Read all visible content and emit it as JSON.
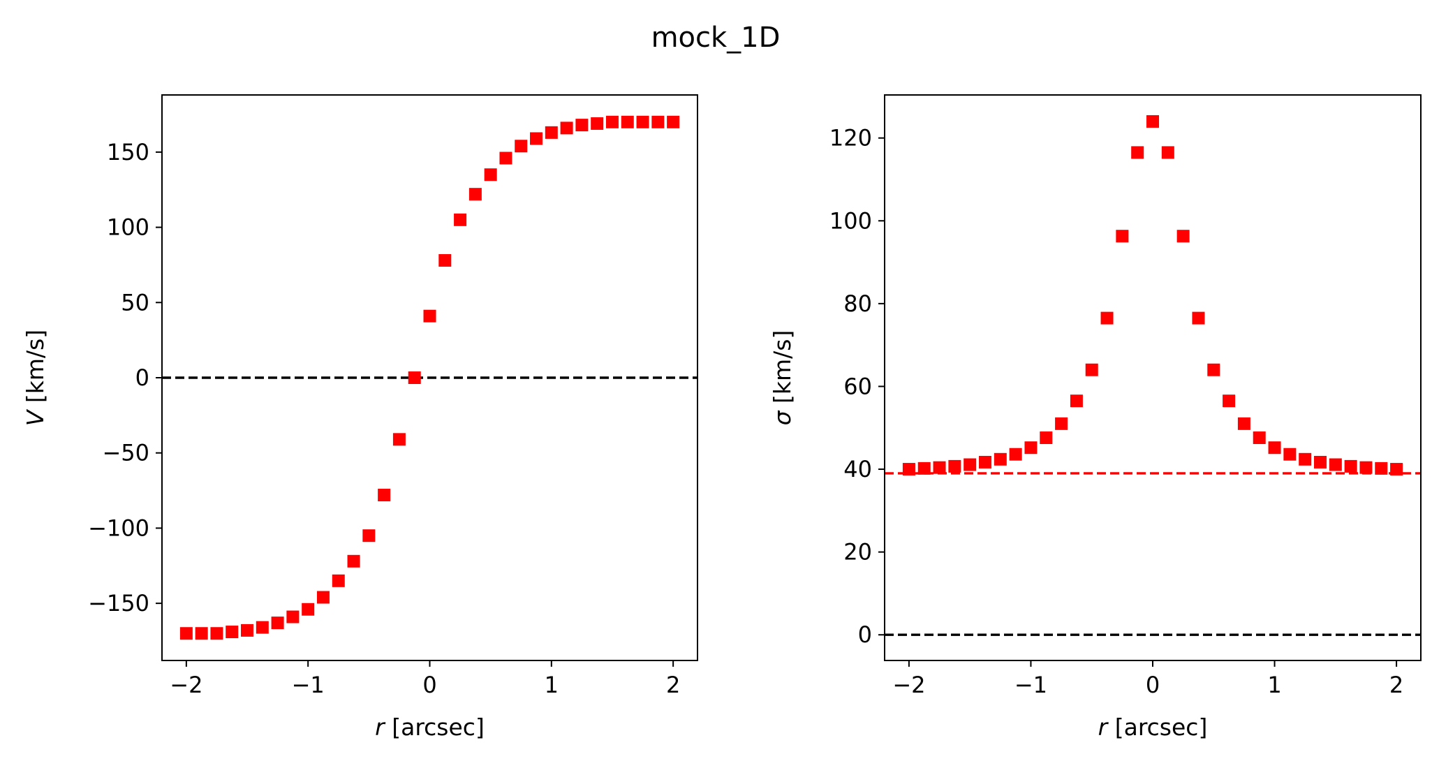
{
  "figure_title": "mock_1D",
  "chart_data": [
    {
      "type": "scatter",
      "xlabel_var": "r",
      "xlabel_unit": " [arcsec]",
      "ylabel_var": "V",
      "ylabel_unit": " [km/s]",
      "xlim": [
        -2.2,
        2.2
      ],
      "ylim": [
        -188,
        188
      ],
      "xticks": [
        -2,
        -1,
        0,
        1,
        2
      ],
      "xtick_labels": [
        "−2",
        "−1",
        "0",
        "1",
        "2"
      ],
      "yticks": [
        -150,
        -100,
        -50,
        0,
        50,
        100,
        150
      ],
      "ytick_labels": [
        "−150",
        "−100",
        "−50",
        "0",
        "50",
        "100",
        "150"
      ],
      "grid": false,
      "marker": "square",
      "marker_color": "#ff0000",
      "hlines": [
        {
          "y": 0,
          "color": "#000000",
          "style": "dashed"
        }
      ],
      "series": [
        {
          "x": [
            -2.0,
            -1.875,
            -1.75,
            -1.625,
            -1.5,
            -1.375,
            -1.25,
            -1.125,
            -1.0,
            -0.875,
            -0.75,
            -0.625,
            -0.5,
            -0.375,
            -0.25,
            -0.125,
            0.0,
            0.125,
            0.25,
            0.375,
            0.5,
            0.625,
            0.75,
            0.875,
            1.0,
            1.125,
            1.25,
            1.375,
            1.5,
            1.625,
            1.75,
            1.875,
            2.0
          ],
          "y": [
            -170,
            -170,
            -170,
            -169,
            -168,
            -166,
            -163,
            -159,
            -154,
            -146,
            -135,
            -122,
            -105,
            -78,
            -41,
            0,
            41,
            78,
            105,
            122,
            135,
            146,
            154,
            159,
            163,
            166,
            168,
            169,
            170,
            170,
            170,
            170,
            170
          ]
        }
      ]
    },
    {
      "type": "scatter",
      "xlabel_var": "r",
      "xlabel_unit": " [arcsec]",
      "ylabel_var": "σ",
      "ylabel_unit": " [km/s]",
      "xlim": [
        -2.2,
        2.2
      ],
      "ylim": [
        -6.2,
        130.4
      ],
      "xticks": [
        -2,
        -1,
        0,
        1,
        2
      ],
      "xtick_labels": [
        "−2",
        "−1",
        "0",
        "1",
        "2"
      ],
      "yticks": [
        0,
        20,
        40,
        60,
        80,
        100,
        120
      ],
      "ytick_labels": [
        "0",
        "20",
        "40",
        "60",
        "80",
        "100",
        "120"
      ],
      "grid": false,
      "marker": "square",
      "marker_color": "#ff0000",
      "hlines": [
        {
          "y": 0,
          "color": "#000000",
          "style": "dashed"
        },
        {
          "y": 39,
          "color": "#ff0000",
          "style": "dashed"
        }
      ],
      "series": [
        {
          "x": [
            -2.0,
            -1.875,
            -1.75,
            -1.625,
            -1.5,
            -1.375,
            -1.25,
            -1.125,
            -1.0,
            -0.875,
            -0.75,
            -0.625,
            -0.5,
            -0.375,
            -0.25,
            -0.125,
            0.0,
            0.125,
            0.25,
            0.375,
            0.5,
            0.625,
            0.75,
            0.875,
            1.0,
            1.125,
            1.25,
            1.375,
            1.5,
            1.625,
            1.75,
            1.875,
            2.0
          ],
          "y": [
            40,
            40.2,
            40.4,
            40.7,
            41.1,
            41.7,
            42.4,
            43.6,
            45.2,
            47.6,
            51,
            56.5,
            64,
            76.5,
            96.3,
            116.5,
            124,
            116.5,
            96.3,
            76.5,
            64,
            56.5,
            51,
            47.6,
            45.2,
            43.6,
            42.4,
            41.7,
            41.1,
            40.7,
            40.4,
            40.2,
            40
          ]
        }
      ]
    }
  ]
}
